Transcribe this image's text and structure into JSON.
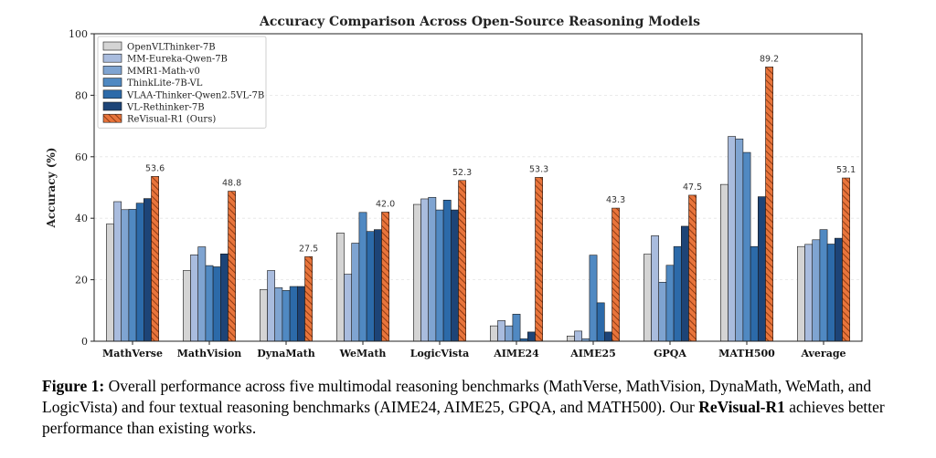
{
  "chart_data": {
    "type": "bar",
    "title": "Accuracy Comparison Across Open-Source Reasoning Models",
    "xlabel": "",
    "ylabel": "Accuracy (%)",
    "ylim": [
      0,
      100
    ],
    "yticks": [
      0,
      20,
      40,
      60,
      80,
      100
    ],
    "grid": true,
    "legend_position": "top-left",
    "categories": [
      "MathVerse",
      "MathVision",
      "DynaMath",
      "WeMath",
      "LogicVista",
      "AIME24",
      "AIME25",
      "GPQA",
      "MATH500",
      "Average"
    ],
    "series": [
      {
        "name": "OpenVLThinker-7B",
        "color": "#d4d4d4",
        "values": [
          38.1,
          23.0,
          16.8,
          35.2,
          44.5,
          5.0,
          1.7,
          28.3,
          51.0,
          30.8
        ]
      },
      {
        "name": "MM-Eureka-Qwen-7B",
        "color": "#a9bcde",
        "values": [
          45.4,
          28.1,
          23.0,
          21.8,
          46.3,
          6.7,
          3.3,
          34.3,
          66.6,
          31.5
        ]
      },
      {
        "name": "MMR1-Math-v0",
        "color": "#7fa4d1",
        "values": [
          42.8,
          30.7,
          17.4,
          31.9,
          46.8,
          5.0,
          0.8,
          19.2,
          65.8,
          33.0
        ]
      },
      {
        "name": "ThinkLite-7B-VL",
        "color": "#5089c2",
        "values": [
          42.9,
          24.6,
          16.5,
          41.9,
          42.7,
          8.8,
          28.0,
          24.7,
          61.4,
          36.3
        ]
      },
      {
        "name": "VLAA-Thinker-Qwen2.5VL-7B",
        "color": "#2c6aa9",
        "values": [
          44.9,
          24.2,
          17.8,
          35.7,
          45.9,
          0.8,
          12.5,
          30.8,
          30.8,
          31.6
        ]
      },
      {
        "name": "VL-Rethinker-7B",
        "color": "#1d4477",
        "values": [
          46.4,
          28.4,
          17.8,
          36.3,
          42.7,
          3.0,
          3.0,
          37.4,
          47.0,
          33.5
        ]
      },
      {
        "name": "ReVisual-R1 (Ours)",
        "color": "#e8743b",
        "hatch": true,
        "values": [
          53.6,
          48.8,
          27.5,
          42.0,
          52.3,
          53.3,
          43.3,
          47.5,
          89.2,
          53.1
        ]
      }
    ],
    "data_labels": [
      "53.6",
      "48.8",
      "27.5",
      "42.0",
      "52.3",
      "53.3",
      "43.3",
      "47.5",
      "89.2",
      "53.1"
    ]
  },
  "caption": {
    "label": "Figure 1:",
    "text_before": " Overall performance across five multimodal reasoning benchmarks (MathVerse, MathVision, DynaMath, WeMath, and LogicVista) and four textual reasoning benchmarks (AIME24, AIME25, GPQA, and MATH500). Our ",
    "highlight": "ReVisual-R1",
    "text_after": " achieves better performance than existing works."
  }
}
